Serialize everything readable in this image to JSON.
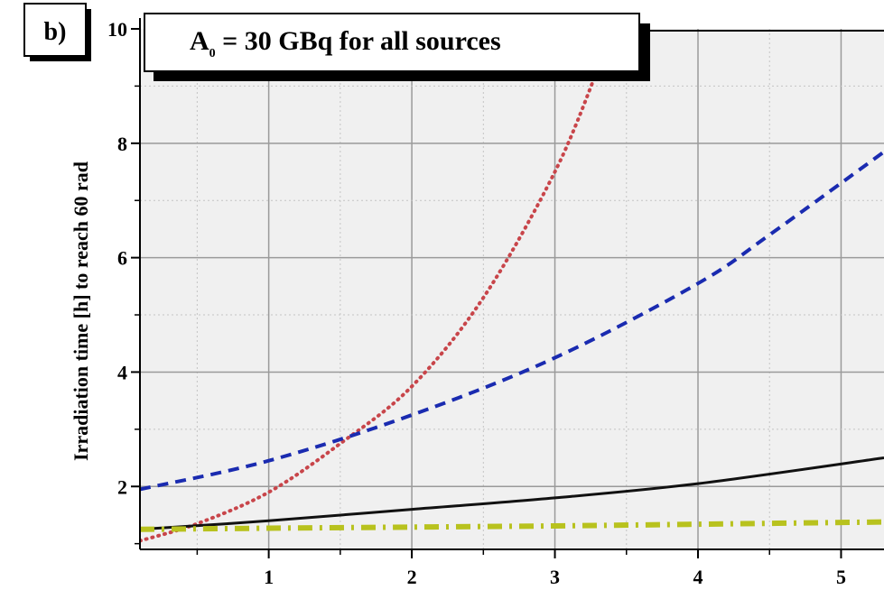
{
  "chart_data": {
    "type": "line",
    "panel_label": "b)",
    "title": "A",
    "title_subscript": "0",
    "title_rest": " = 30 GBq for all sources",
    "xlabel": "",
    "ylabel": "Irradiation time [h] to reach 60 rad",
    "xlim": [
      0.1,
      5.3
    ],
    "ylim": [
      0.9,
      10
    ],
    "xticks": [
      1,
      2,
      3,
      4,
      5
    ],
    "yticks": [
      2,
      4,
      6,
      8,
      10
    ],
    "grid": true,
    "series": [
      {
        "style": "dotted",
        "color": "#c8454a",
        "x": [
          0.1,
          0.5,
          1.0,
          1.5,
          2.0,
          2.5,
          3.0,
          3.3
        ],
        "y": [
          1.05,
          1.35,
          1.9,
          2.75,
          3.75,
          5.3,
          7.5,
          9.3
        ]
      },
      {
        "style": "dashed",
        "color": "#1a2bb0",
        "x": [
          0.1,
          1.0,
          2.0,
          3.0,
          4.0,
          4.5,
          5.3
        ],
        "y": [
          1.95,
          2.45,
          3.25,
          4.25,
          5.55,
          6.4,
          7.85
        ]
      },
      {
        "style": "solid",
        "color": "#111111",
        "x": [
          0.1,
          1.0,
          2.0,
          3.0,
          4.0,
          5.3
        ],
        "y": [
          1.25,
          1.4,
          1.6,
          1.8,
          2.05,
          2.5
        ]
      },
      {
        "style": "dash-dot",
        "color": "#b8c21e",
        "x": [
          0.1,
          1.0,
          2.0,
          3.0,
          4.0,
          5.3
        ],
        "y": [
          1.25,
          1.27,
          1.29,
          1.31,
          1.34,
          1.38
        ]
      }
    ]
  }
}
